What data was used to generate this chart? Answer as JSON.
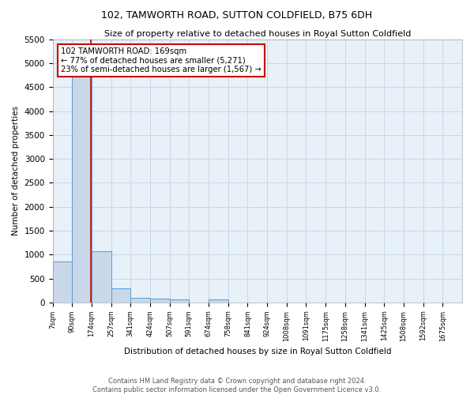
{
  "title": "102, TAMWORTH ROAD, SUTTON COLDFIELD, B75 6DH",
  "subtitle": "Size of property relative to detached houses in Royal Sutton Coldfield",
  "xlabel": "Distribution of detached houses by size in Royal Sutton Coldfield",
  "ylabel": "Number of detached properties",
  "bin_labels": [
    "7sqm",
    "90sqm",
    "174sqm",
    "257sqm",
    "341sqm",
    "424sqm",
    "507sqm",
    "591sqm",
    "674sqm",
    "758sqm",
    "841sqm",
    "924sqm",
    "1008sqm",
    "1091sqm",
    "1175sqm",
    "1258sqm",
    "1341sqm",
    "1425sqm",
    "1508sqm",
    "1592sqm",
    "1675sqm"
  ],
  "bar_heights": [
    850,
    5271,
    1067,
    290,
    95,
    80,
    70,
    0,
    70,
    0,
    0,
    0,
    0,
    0,
    0,
    0,
    0,
    0,
    0,
    0,
    0
  ],
  "bar_color": "#c8d8e8",
  "bar_edge_color": "#5b9bd5",
  "annotation_text": "102 TAMWORTH ROAD: 169sqm\n← 77% of detached houses are smaller (5,271)\n23% of semi-detached houses are larger (1,567) →",
  "annotation_box_color": "#ffffff",
  "annotation_box_edge": "#cc0000",
  "redline_color": "#cc0000",
  "ylim": [
    0,
    5500
  ],
  "yticks": [
    0,
    500,
    1000,
    1500,
    2000,
    2500,
    3000,
    3500,
    4000,
    4500,
    5000,
    5500
  ],
  "footer_line1": "Contains HM Land Registry data © Crown copyright and database right 2024.",
  "footer_line2": "Contains public sector information licensed under the Open Government Licence v3.0.",
  "background_color": "#ffffff",
  "grid_color": "#c8d8e8",
  "ax_bg_color": "#e8f0f8"
}
